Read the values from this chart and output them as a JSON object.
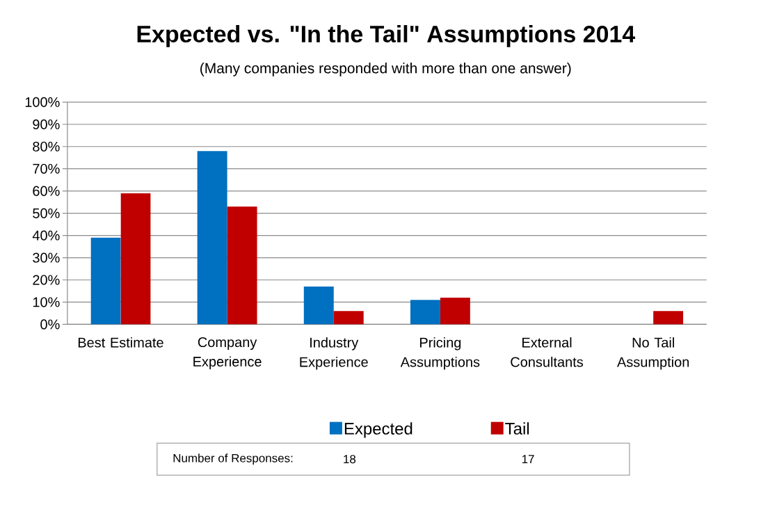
{
  "chart_data": {
    "type": "bar",
    "title": "Expected vs. \"In the Tail\" Assumptions 2014",
    "subtitle": "(Many companies responded with more than one answer)",
    "categories": [
      "Best Estimate",
      "Company Experience",
      "Industry Experience",
      "Pricing Assumptions",
      "External Consultants",
      "No Tail Assumption"
    ],
    "series": [
      {
        "name": "Expected",
        "color": "#0070c0",
        "values": [
          39,
          78,
          17,
          11,
          0,
          0
        ]
      },
      {
        "name": "Tail",
        "color": "#c00000",
        "values": [
          59,
          53,
          6,
          12,
          0,
          6
        ]
      }
    ],
    "ylim": [
      0,
      100
    ],
    "yticks": [
      {
        "value": 0,
        "label": "0%"
      },
      {
        "value": 10,
        "label": "10%"
      },
      {
        "value": 20,
        "label": "20%"
      },
      {
        "value": 30,
        "label": "30%"
      },
      {
        "value": 40,
        "label": "40%"
      },
      {
        "value": 50,
        "label": "50%"
      },
      {
        "value": 60,
        "label": "60%"
      },
      {
        "value": 70,
        "label": "70%"
      },
      {
        "value": 80,
        "label": "80%"
      },
      {
        "value": 90,
        "label": "90%"
      },
      {
        "value": 100,
        "label": "100%"
      }
    ],
    "grid": "y",
    "legend": "bottom",
    "annotations": [
      "Number of Responses:",
      "18",
      "17"
    ]
  }
}
